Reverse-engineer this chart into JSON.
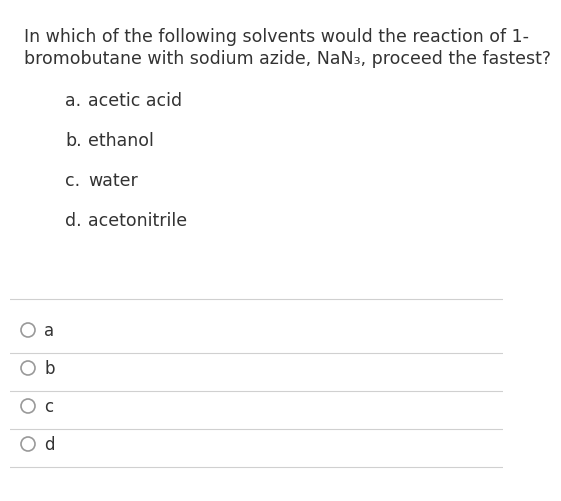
{
  "background_color": "#ffffff",
  "question_line1": "In which of the following solvents would the reaction of 1-",
  "question_line2": "bromobutane with sodium azide, NaN₃, proceed the fastest?",
  "options": [
    {
      "label": "a.",
      "text": "acetic acid"
    },
    {
      "label": "b.",
      "text": "ethanol"
    },
    {
      "label": "c.",
      "text": "water"
    },
    {
      "label": "d.",
      "text": "acetonitrile"
    }
  ],
  "answer_choices": [
    "a",
    "b",
    "c",
    "d"
  ],
  "separator_color": "#d0d0d0",
  "text_color": "#333333",
  "circle_color": "#999999",
  "question_fontsize": 12.5,
  "option_fontsize": 12.5,
  "answer_fontsize": 12.0
}
